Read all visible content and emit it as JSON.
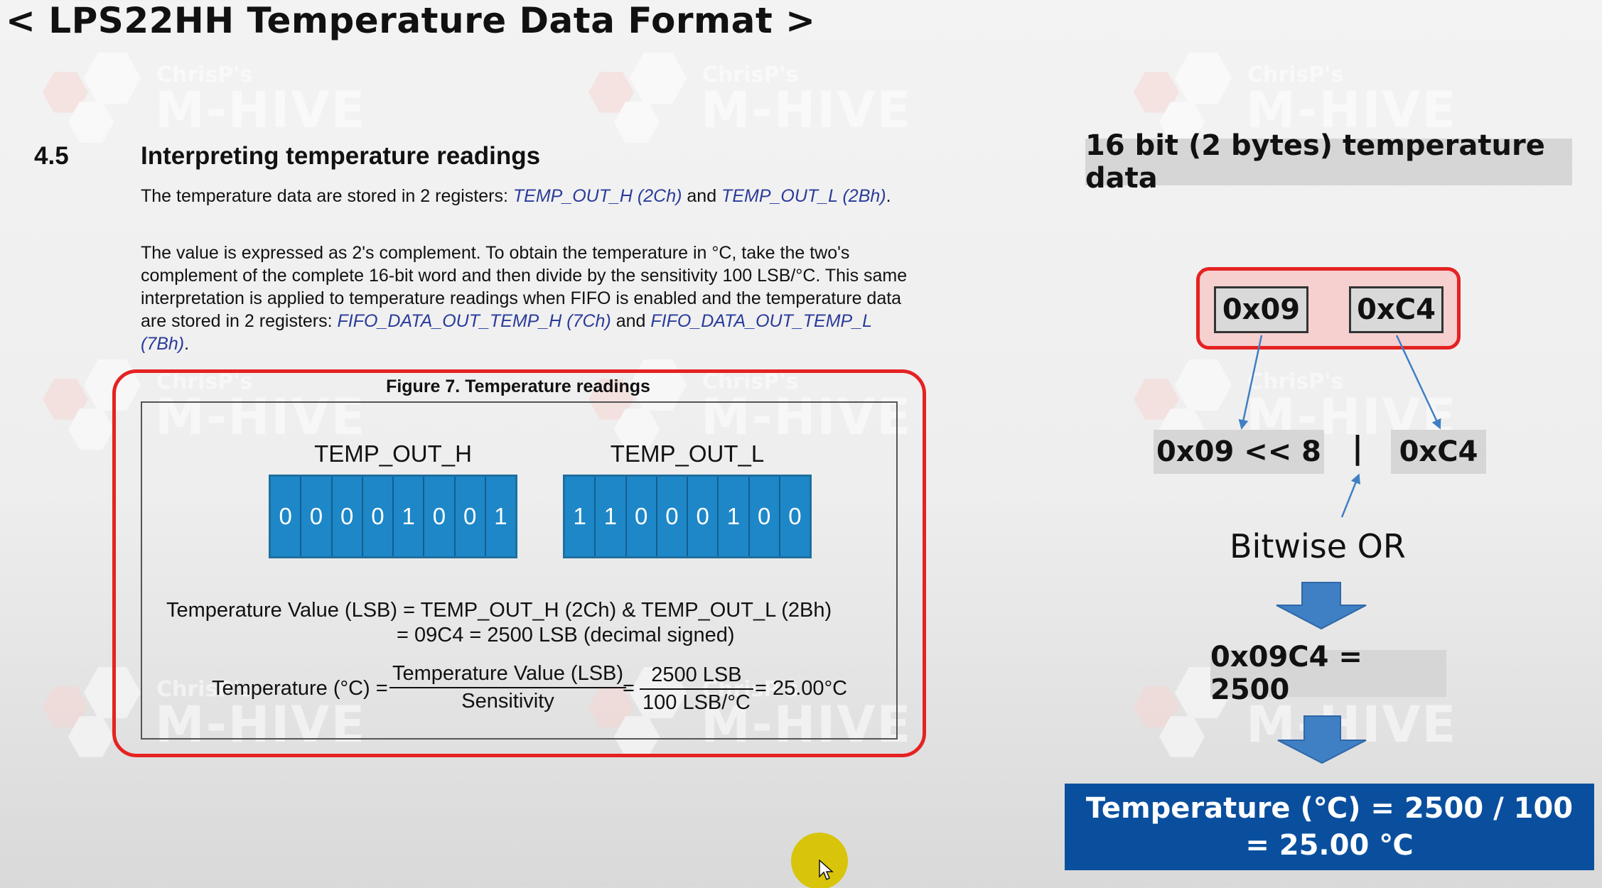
{
  "title": "< LPS22HH Temperature Data Format >",
  "watermark": {
    "line1": "ChrisP's",
    "line2": "M-HIVE"
  },
  "section": {
    "number": "4.5",
    "title": "Interpreting temperature readings",
    "para1": {
      "t1": "The temperature data are stored in 2 registers: ",
      "r1": "TEMP_OUT_H (2Ch)",
      "t2": " and ",
      "r2": "TEMP_OUT_L (2Bh)",
      "t3": "."
    },
    "para2": {
      "t1": "The value is expressed as 2's complement. To obtain the temperature in °C, take the two's complement of the complete 16-bit word and then divide by the sensitivity 100 LSB/°C. This same interpretation is applied to temperature readings when FIFO is enabled and the temperature data are stored in 2 registers: ",
      "r1": "FIFO_DATA_OUT_TEMP_H (7Ch)",
      "t2": " and ",
      "r2": "FIFO_DATA_OUT_TEMP_L (7Bh)",
      "t3": "."
    }
  },
  "figure": {
    "caption": "Figure 7. Temperature readings",
    "reg_h": {
      "label": "TEMP_OUT_H",
      "bits": [
        "0",
        "0",
        "0",
        "0",
        "1",
        "0",
        "0",
        "1"
      ]
    },
    "reg_l": {
      "label": "TEMP_OUT_L",
      "bits": [
        "1",
        "1",
        "0",
        "0",
        "0",
        "1",
        "0",
        "0"
      ]
    },
    "eq1": "Temperature Value (LSB) = TEMP_OUT_H (2Ch) & TEMP_OUT_L (2Bh)",
    "eq2": "= 09C4 = 2500 LSB (decimal signed)",
    "eq3_lhs": "Temperature (°C) =",
    "frac1_num": "Temperature Value (LSB)",
    "frac1_den": "Sensitivity",
    "eq_sign": "=",
    "frac2_num": "2500 LSB",
    "frac2_den": "100 LSB/°C",
    "eq3_result": "= 25.00°C"
  },
  "right": {
    "header": "16 bit (2 bytes) temperature data",
    "high_byte": "0x09",
    "low_byte": "0xC4",
    "shift_expr": "0x09 << 8",
    "pipe": "|",
    "low_expr": "0xC4",
    "bitwise_label": "Bitwise OR",
    "result": "0x09C4 = 2500",
    "temp_line1": "Temperature (℃) = 2500 / 100",
    "temp_line2": "= 25.00 ℃"
  },
  "colors": {
    "frame_red": "#e52222",
    "bit_blue": "#1d87c8",
    "arrow_blue": "#3f7fc4",
    "result_blue": "#0a4f9e",
    "register_link": "#2a3b9a",
    "cursor_yellow": "#d8c40a"
  }
}
